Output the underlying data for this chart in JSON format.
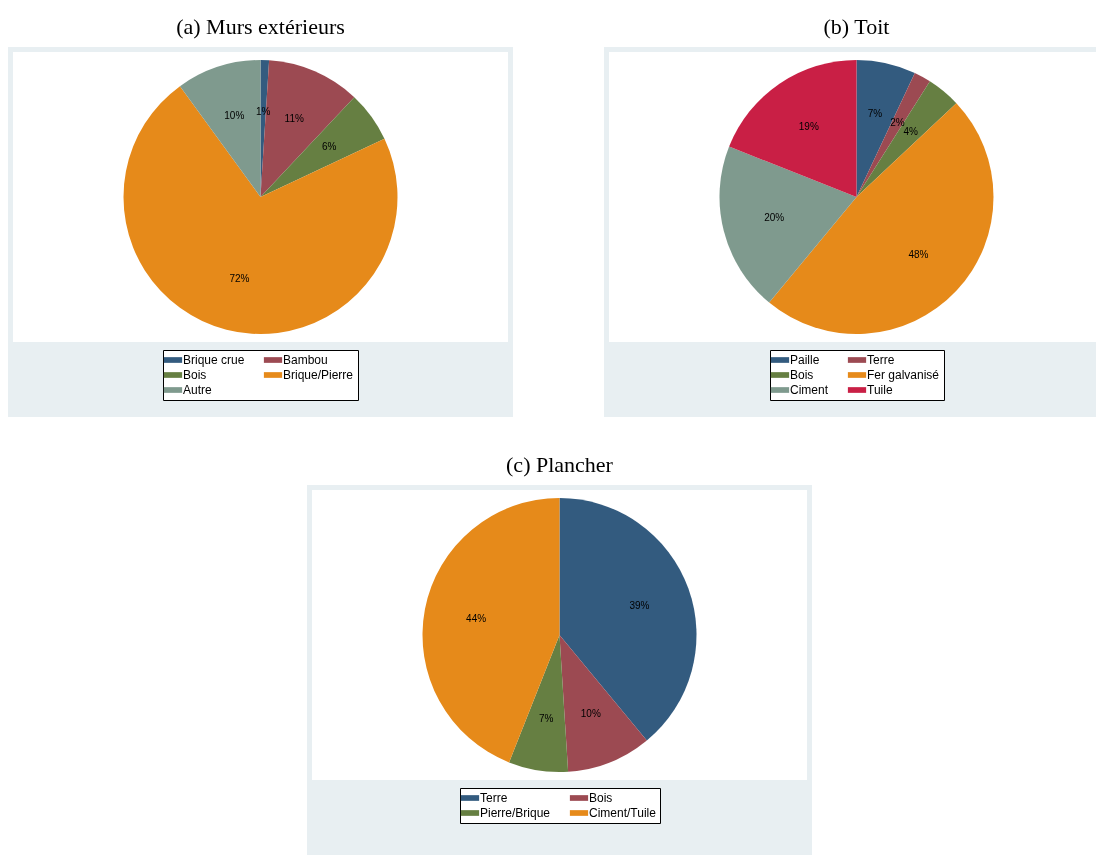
{
  "chart_data": [
    {
      "type": "pie",
      "title": "(a) Murs extérieurs",
      "categories": [
        "Brique crue",
        "Bambou",
        "Bois",
        "Brique/Pierre",
        "Autre"
      ],
      "values": [
        1,
        11,
        6,
        72,
        10
      ],
      "value_labels": [
        "1%",
        "11%",
        "6%",
        "72%",
        "10%"
      ],
      "colors": [
        "#335b7f",
        "#9c4a52",
        "#667f42",
        "#e68a1a",
        "#7f9a8e"
      ],
      "legend": "bottom"
    },
    {
      "type": "pie",
      "title": "(b) Toit",
      "categories": [
        "Paille",
        "Terre",
        "Bois",
        "Fer galvanisé",
        "Ciment",
        "Tuile"
      ],
      "values": [
        7,
        2,
        4,
        48,
        20,
        19
      ],
      "value_labels": [
        "7%",
        "2%",
        "4%",
        "48%",
        "20%",
        "19%"
      ],
      "colors": [
        "#335b7f",
        "#9c4a52",
        "#667f42",
        "#e68a1a",
        "#7f9a8e",
        "#c91f45"
      ],
      "legend": "bottom"
    },
    {
      "type": "pie",
      "title": "(c) Plancher",
      "categories": [
        "Terre",
        "Bois",
        "Pierre/Brique",
        "Ciment/Tuile"
      ],
      "values": [
        39,
        10,
        7,
        44
      ],
      "value_labels": [
        "39%",
        "10%",
        "7%",
        "44%"
      ],
      "colors": [
        "#335b7f",
        "#9c4a52",
        "#667f42",
        "#e68a1a"
      ],
      "legend": "bottom"
    }
  ]
}
